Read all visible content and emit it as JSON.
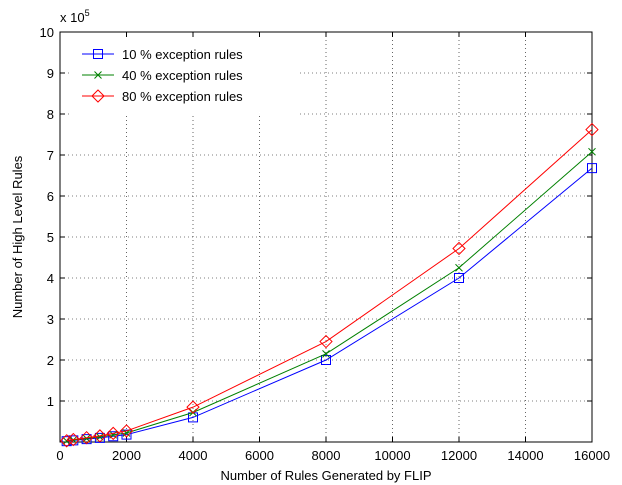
{
  "chart_data": {
    "type": "line",
    "title": "",
    "xlabel": "Number of Rules Generated by FLIP",
    "ylabel": "Number of High Level Rules",
    "xlim": [
      0,
      16000
    ],
    "ylim": [
      0,
      1000000
    ],
    "y_exponent_label": "x 10",
    "y_exponent_power": "5",
    "x_ticks": [
      0,
      2000,
      4000,
      6000,
      8000,
      10000,
      12000,
      14000,
      16000
    ],
    "x_tick_labels": [
      "0",
      "2000",
      "4000",
      "6000",
      "8000",
      "10000",
      "12000",
      "14000",
      "16000"
    ],
    "y_ticks": [
      100000,
      200000,
      300000,
      400000,
      500000,
      600000,
      700000,
      800000,
      900000,
      1000000
    ],
    "y_tick_labels": [
      "1",
      "2",
      "3",
      "4",
      "5",
      "6",
      "7",
      "8",
      "9",
      "10"
    ],
    "grid": true,
    "legend_position": "top-left",
    "x": [
      200,
      400,
      800,
      1200,
      1600,
      2000,
      4000,
      8000,
      12000,
      16000
    ],
    "series": [
      {
        "name": "10 % exception rules",
        "color": "#0000ff",
        "marker": "square",
        "values": [
          2000,
          4000,
          7000,
          10000,
          14000,
          18000,
          60000,
          200000,
          400000,
          668000
        ]
      },
      {
        "name": "40 % exception rules",
        "color": "#008000",
        "marker": "x",
        "values": [
          2500,
          5000,
          8500,
          12500,
          17500,
          22000,
          72000,
          215000,
          425000,
          708000
        ]
      },
      {
        "name": "80 % exception rules",
        "color": "#ff0000",
        "marker": "diamond",
        "values": [
          3000,
          6000,
          10500,
          15000,
          21000,
          27000,
          85000,
          245000,
          472000,
          762000
        ]
      }
    ]
  }
}
